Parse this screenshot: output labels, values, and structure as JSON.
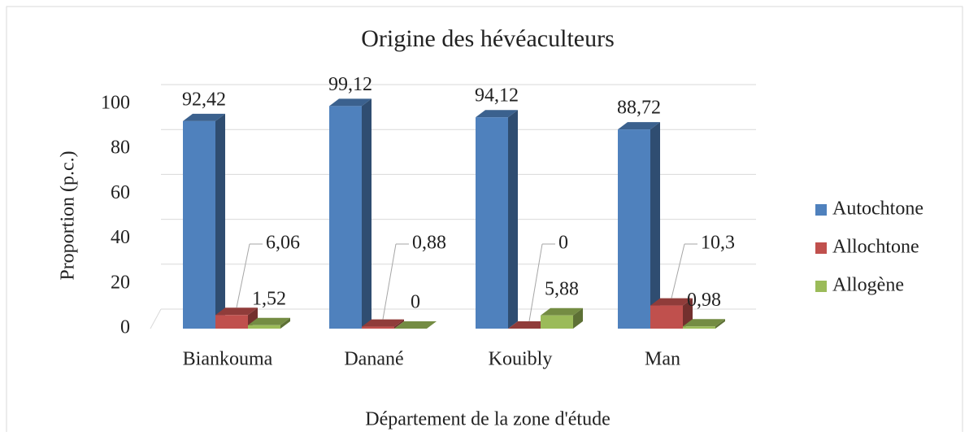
{
  "chart_data": {
    "type": "bar3d",
    "title": "Origine des hévéaculteurs",
    "x_label": "Département de la zone d'étude",
    "y_label": "Proportion (p.c.)",
    "categories": [
      "Biankouma",
      "Danané",
      "Kouibly",
      "Man"
    ],
    "series": [
      {
        "name": "Autochtone",
        "color": "#4f81bd",
        "values": [
          92.42,
          99.12,
          94.12,
          88.72
        ],
        "value_labels": [
          "92,42",
          "99,12",
          "94,12",
          "88,72"
        ]
      },
      {
        "name": "Allochtone",
        "color": "#c0504d",
        "values": [
          6.06,
          0.88,
          0,
          10.3
        ],
        "value_labels": [
          "6,06",
          "0,88",
          "0",
          "10,3"
        ]
      },
      {
        "name": "Allogène",
        "color": "#9bbb59",
        "values": [
          1.52,
          0,
          5.88,
          0.98
        ],
        "value_labels": [
          "1,52",
          "0",
          "5,88",
          "0,98"
        ]
      }
    ],
    "ylim": [
      0,
      100
    ],
    "yticks": [
      0,
      20,
      40,
      60,
      80,
      100
    ],
    "grid": true,
    "legend": "right"
  }
}
